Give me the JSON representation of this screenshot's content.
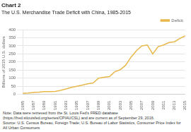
{
  "chart_data": {
    "type": "line",
    "title": "Chart 2",
    "subtitle": "The U.S. Merchandise Trade Deficit with China, 1985-2015",
    "y_label": "Billions of 2015 U.S. dollars",
    "x": [
      1985,
      1986,
      1987,
      1988,
      1989,
      1990,
      1991,
      1992,
      1993,
      1994,
      1995,
      1996,
      1997,
      1998,
      1999,
      2000,
      2001,
      2002,
      2003,
      2004,
      2005,
      2006,
      2007,
      2008,
      2009,
      2010,
      2011,
      2012,
      2013,
      2014,
      2015
    ],
    "series": [
      {
        "name": "Deficit",
        "color": "#E8B84B",
        "values": [
          6,
          8,
          12,
          14,
          17,
          17,
          18,
          25,
          33,
          43,
          50,
          57,
          65,
          70,
          100,
          105,
          110,
          140,
          152,
          180,
          230,
          270,
          300,
          305,
          250,
          295,
          305,
          320,
          325,
          345,
          362
        ]
      }
    ],
    "xlim": [
      1985,
      2015
    ],
    "xticks": [
      1985,
      1987,
      1989,
      1991,
      1993,
      1995,
      1997,
      1999,
      2001,
      2003,
      2005,
      2007,
      2009,
      2011,
      2013,
      2015
    ],
    "ylim": [
      0,
      400
    ],
    "yticks": [
      0,
      50,
      100,
      150,
      200,
      250,
      300,
      350,
      400
    ],
    "grid": "y",
    "legend": "upper right",
    "note": "Note: Data were retrieved from the St. Louis Fed's FRED database\n(https://fred.stlouisfed.org/series/CPIAUCSL) and are current as of September 29, 2016.\nSource: U.S. Census Bureau, Foreign Trade; U.S. Bureau of Labor Statistics, Consumer Price Index for\nAll Urban Consumers"
  }
}
